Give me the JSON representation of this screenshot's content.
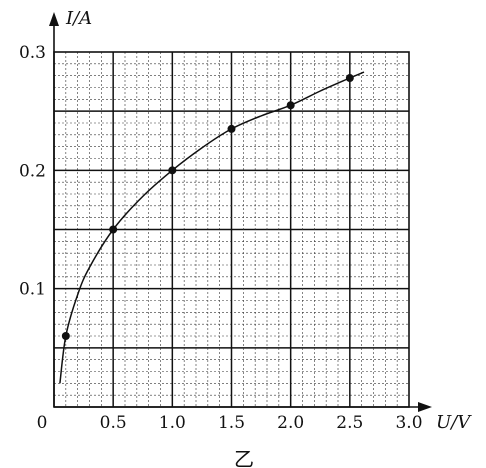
{
  "chart_data": {
    "type": "line",
    "xlabel": "U/V",
    "ylabel": "I/A",
    "caption": "乙",
    "xlim": [
      0,
      3.0
    ],
    "ylim": [
      0,
      0.3
    ],
    "x_ticks": [
      "0",
      "0.5",
      "1.0",
      "1.5",
      "2.0",
      "2.5",
      "3.0"
    ],
    "y_ticks": [
      "0.1",
      "0.2",
      "0.3"
    ],
    "grid": true,
    "points": [
      {
        "x": 0.1,
        "y": 0.06
      },
      {
        "x": 0.5,
        "y": 0.15
      },
      {
        "x": 1.0,
        "y": 0.2
      },
      {
        "x": 1.5,
        "y": 0.235
      },
      {
        "x": 2.0,
        "y": 0.255
      },
      {
        "x": 2.5,
        "y": 0.278
      }
    ],
    "curve": [
      {
        "x": 0.05,
        "y": 0.02
      },
      {
        "x": 0.1,
        "y": 0.06
      },
      {
        "x": 0.2,
        "y": 0.095
      },
      {
        "x": 0.3,
        "y": 0.118
      },
      {
        "x": 0.5,
        "y": 0.15
      },
      {
        "x": 0.75,
        "y": 0.178
      },
      {
        "x": 1.0,
        "y": 0.2
      },
      {
        "x": 1.25,
        "y": 0.219
      },
      {
        "x": 1.5,
        "y": 0.235
      },
      {
        "x": 1.75,
        "y": 0.246
      },
      {
        "x": 2.0,
        "y": 0.255
      },
      {
        "x": 2.25,
        "y": 0.267
      },
      {
        "x": 2.5,
        "y": 0.278
      },
      {
        "x": 2.62,
        "y": 0.283
      }
    ]
  }
}
